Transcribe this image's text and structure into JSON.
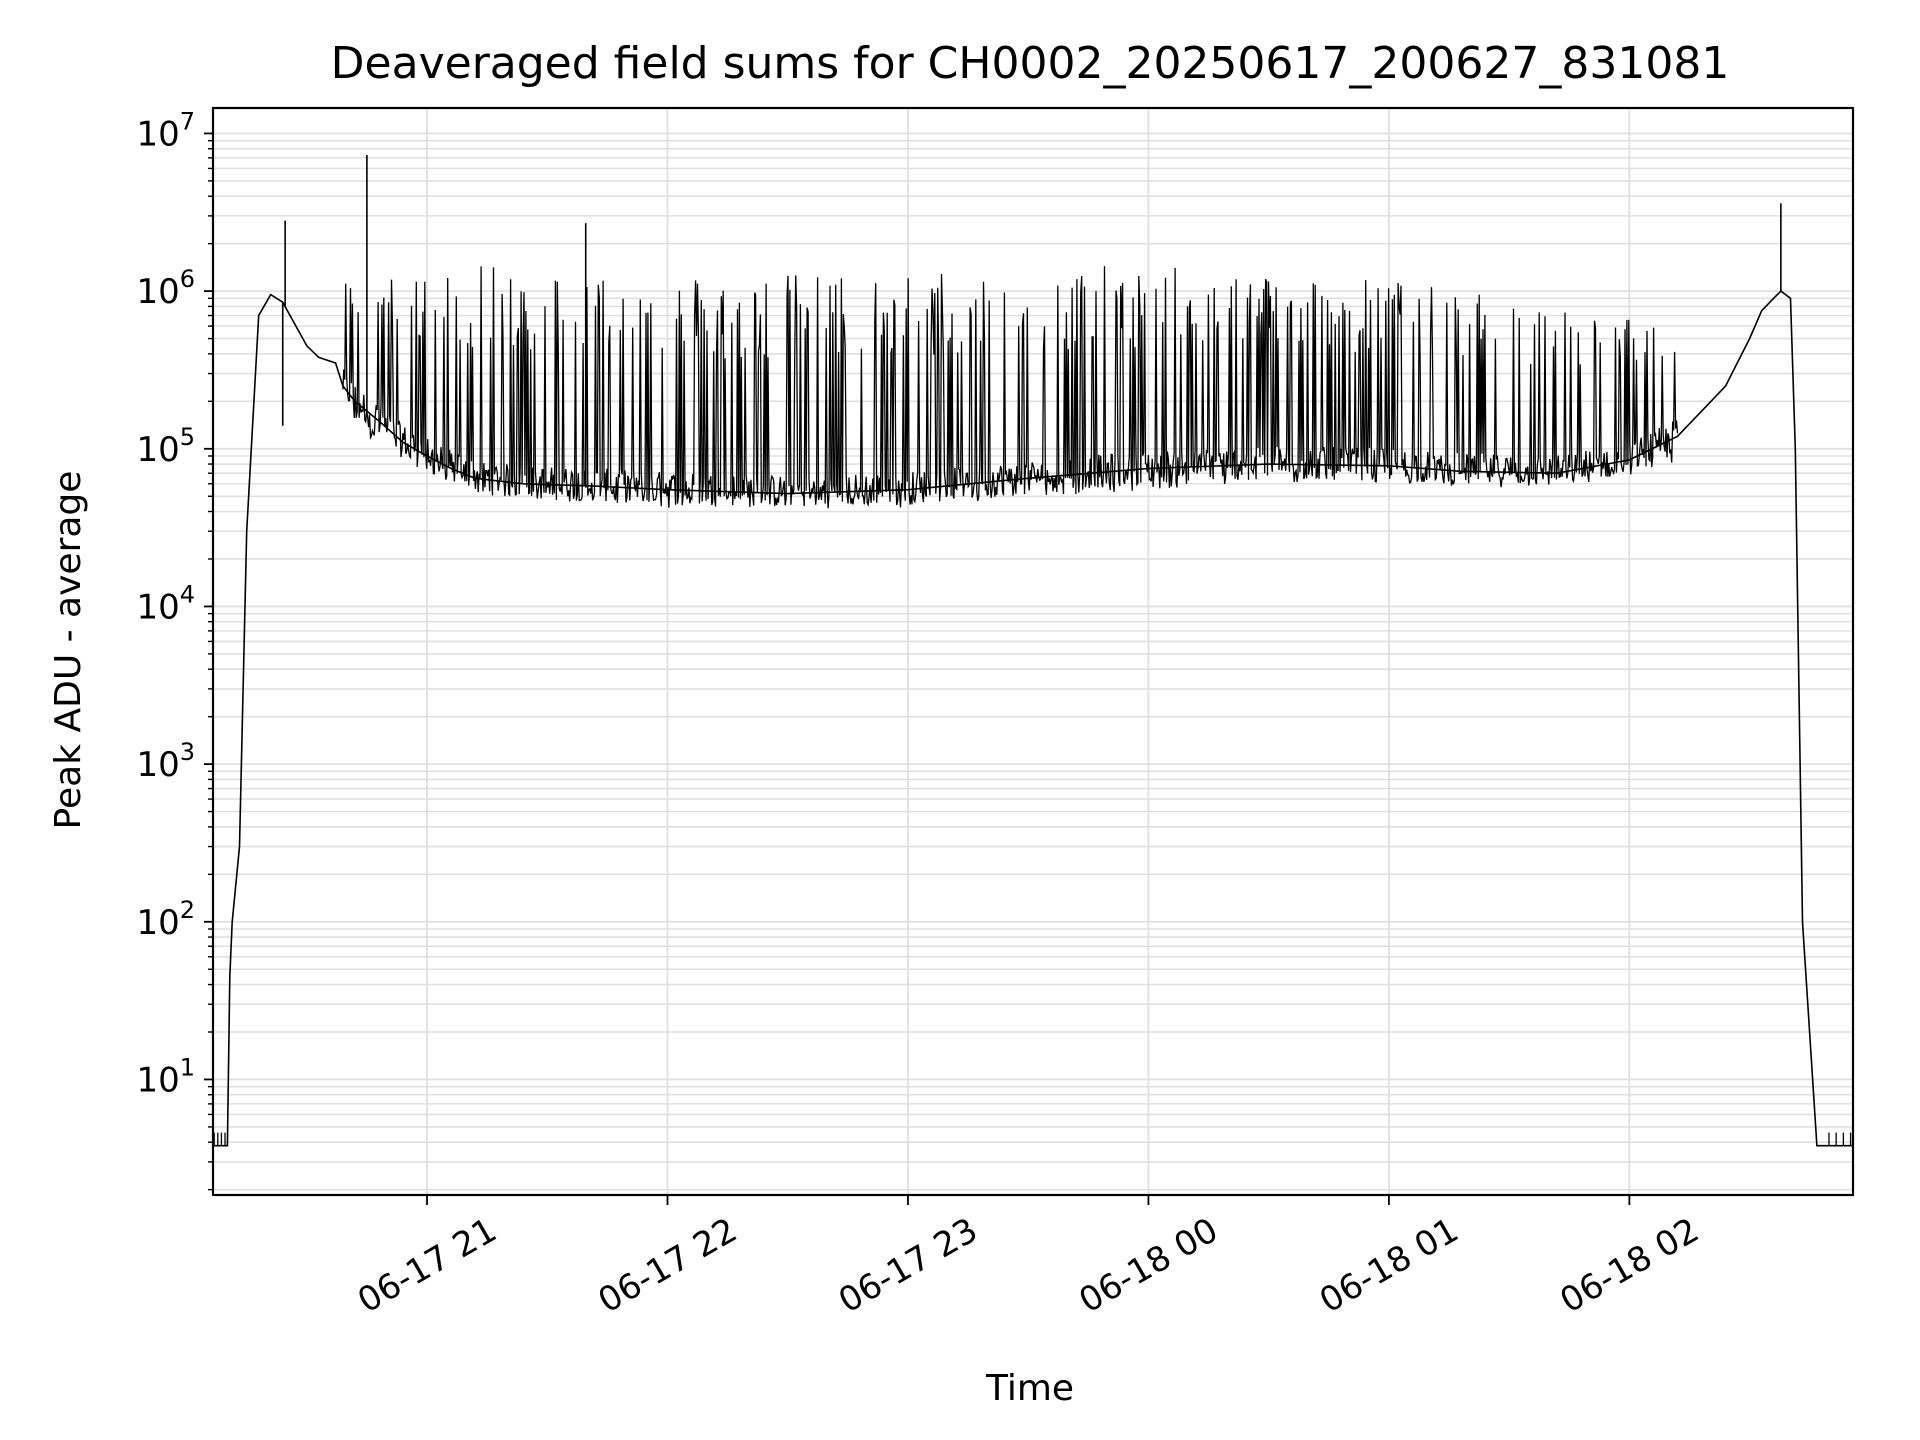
{
  "chart_data": {
    "type": "line",
    "title": "Deaveraged field sums for CH0002_20250617_200627_831081",
    "xlabel": "Time",
    "ylabel": "Peak ADU - average",
    "yscale": "log",
    "grid": true,
    "minor_grid": true,
    "line_color": "#000000",
    "grid_color": "#e0e0e0",
    "x_ticks": [
      "06-17 21",
      "06-17 22",
      "06-17 23",
      "06-18 00",
      "06-18 01",
      "06-18 02"
    ],
    "x_tick_hours": [
      1.0,
      2.0,
      3.0,
      4.0,
      5.0,
      6.0
    ],
    "x_origin": "2025-06-17 20:00",
    "xlim_hours": [
      0.11,
      6.93
    ],
    "y_ticks": [
      {
        "base": "10",
        "exp": "1",
        "value": 10
      },
      {
        "base": "10",
        "exp": "2",
        "value": 100
      },
      {
        "base": "10",
        "exp": "3",
        "value": 1000
      },
      {
        "base": "10",
        "exp": "4",
        "value": 10000
      },
      {
        "base": "10",
        "exp": "5",
        "value": 100000
      },
      {
        "base": "10",
        "exp": "6",
        "value": 1000000
      },
      {
        "base": "10",
        "exp": "7",
        "value": 10000000
      }
    ],
    "ylim": [
      1.85,
      14500000
    ],
    "series": [
      {
        "name": "",
        "x_hours": [
          0.11,
          0.17,
          0.18,
          0.19,
          0.22,
          0.25,
          0.3,
          0.35,
          0.4,
          0.5,
          0.55,
          0.62,
          0.65,
          0.7,
          0.8,
          0.9,
          1.0,
          1.1,
          1.2,
          1.4,
          1.7,
          2.0,
          2.5,
          3.0,
          3.5,
          4.0,
          4.5,
          5.0,
          5.3,
          5.7,
          6.0,
          6.2,
          6.4,
          6.5,
          6.55,
          6.6,
          6.63,
          6.67,
          6.69,
          6.72,
          6.78,
          6.93
        ],
        "y": [
          3.8,
          3.8,
          45,
          100,
          300,
          30000,
          700000,
          950000,
          850000,
          450000,
          380000,
          350000,
          250000,
          200000,
          150000,
          110000,
          90000,
          75000,
          65000,
          60000,
          58000,
          55000,
          52000,
          55000,
          65000,
          75000,
          80000,
          78000,
          72000,
          70000,
          85000,
          120000,
          250000,
          500000,
          750000,
          900000,
          1000000,
          900000,
          100000,
          100,
          3.8,
          3.8
        ]
      }
    ],
    "envelope": {
      "x_hours": [
        0.65,
        1.0,
        1.2,
        1.4,
        1.7,
        2.0,
        2.5,
        3.0,
        3.5,
        4.0,
        4.5,
        5.0,
        5.5,
        6.0,
        6.2
      ],
      "upper": [
        1200000,
        1300000,
        1450000,
        1450000,
        1400000,
        1300000,
        1300000,
        1350000,
        1450000,
        1450000,
        1350000,
        1200000,
        900000,
        700000,
        500000
      ],
      "lower": [
        150000,
        70000,
        52000,
        48000,
        45000,
        42000,
        42000,
        42000,
        48000,
        55000,
        60000,
        60000,
        62000,
        65000,
        80000
      ]
    },
    "spikes": [
      {
        "x_hours": 0.41,
        "y": 2800000
      },
      {
        "x_hours": 0.75,
        "y": 7300000
      },
      {
        "x_hours": 1.66,
        "y": 2700000
      },
      {
        "x_hours": 6.63,
        "y": 3600000
      },
      {
        "x_hours": 0.4,
        "y": 140000
      }
    ]
  }
}
